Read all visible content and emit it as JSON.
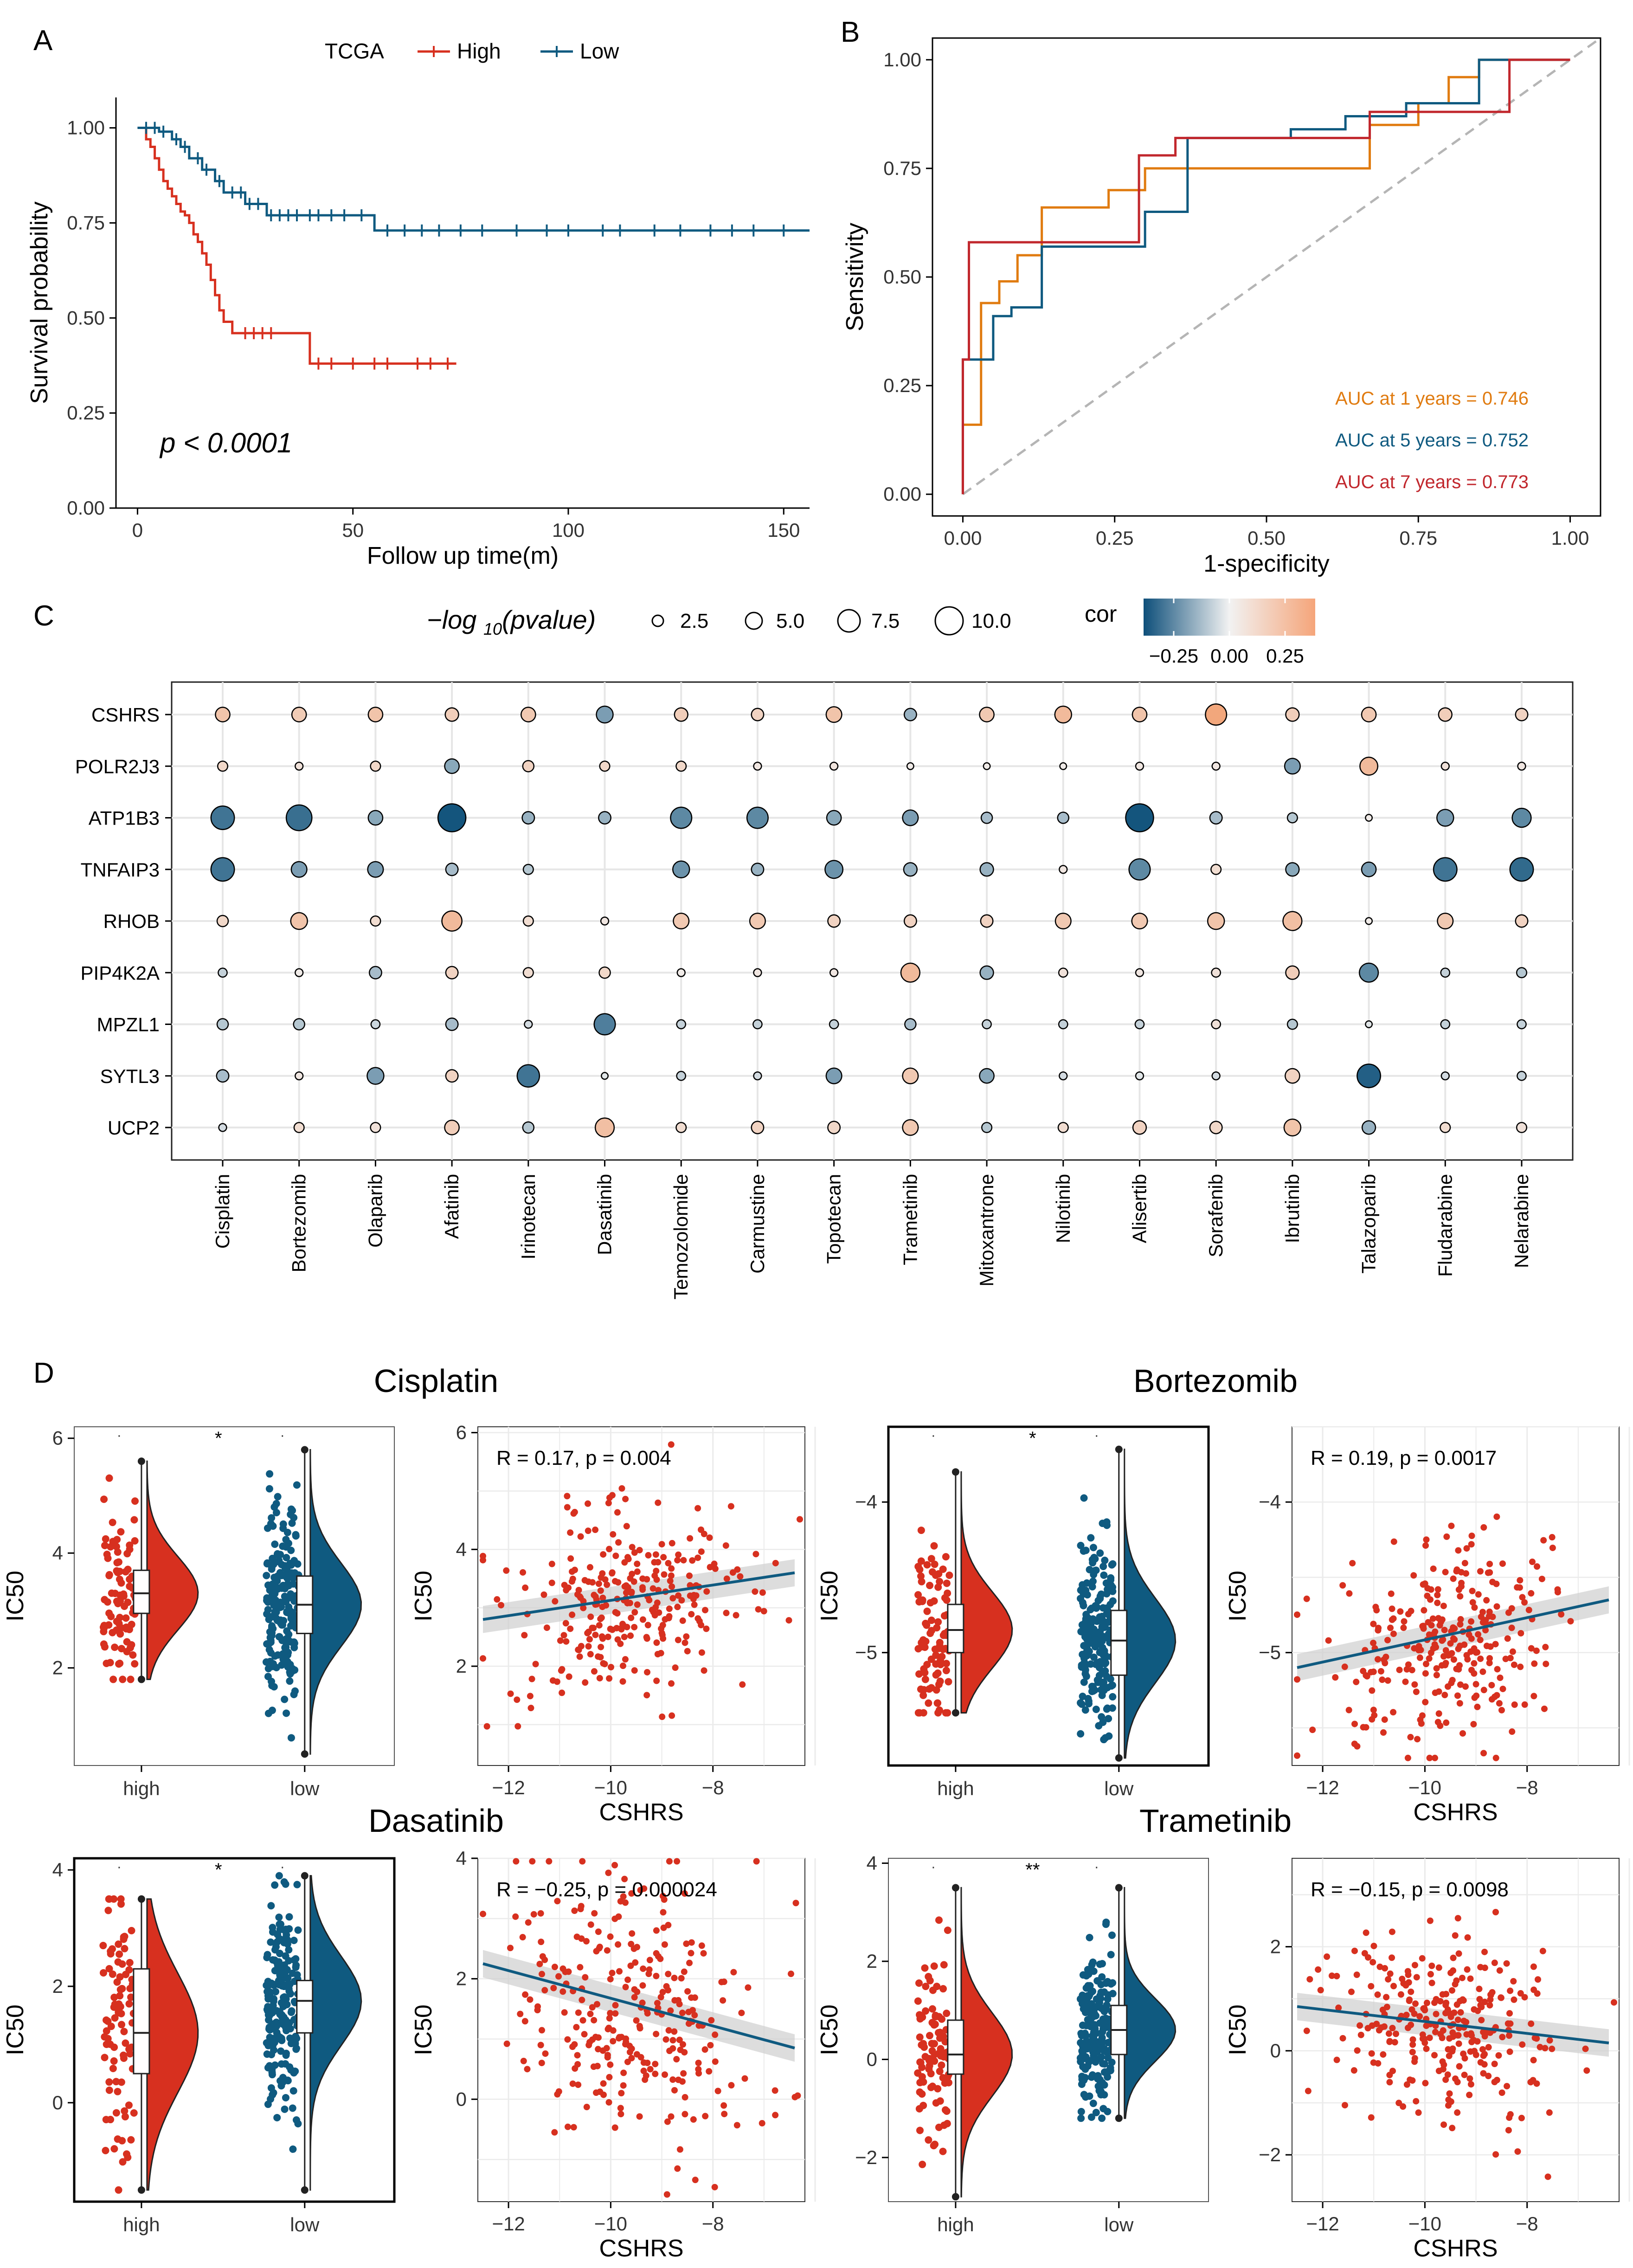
{
  "panels": {
    "A": "A",
    "B": "B",
    "C": "C",
    "D": "D"
  },
  "colors": {
    "high": "#d7301f",
    "low": "#0f5a80",
    "auc1": "#e07b10",
    "auc5": "#0f5a80",
    "auc7": "#c1272d",
    "pos": "#f2a77c",
    "neg": "#2c6a8f",
    "grid": "#e6e6e6"
  },
  "chart_data": [
    {
      "id": "A",
      "type": "line",
      "title": "TCGA",
      "xlabel": "Follow up time(m)",
      "ylabel": "Survival probability",
      "xlim": [
        -5,
        156
      ],
      "ylim": [
        0,
        1.08
      ],
      "xticks": [
        0,
        50,
        100,
        150
      ],
      "yticks": [
        0,
        0.25,
        0.5,
        0.75,
        1.0
      ],
      "yticklabels": [
        "0.00",
        "0.25",
        "0.50",
        "0.75",
        "1.00"
      ],
      "legend_title": "TCGA",
      "annotation": "p < 0.0001",
      "series": [
        {
          "name": "High",
          "x": [
            0,
            2,
            3,
            4,
            5,
            6,
            7,
            8,
            9,
            10,
            11,
            12,
            13,
            14,
            15,
            16,
            17,
            18,
            19,
            20,
            22,
            40,
            74
          ],
          "y": [
            1.0,
            0.97,
            0.95,
            0.92,
            0.89,
            0.86,
            0.84,
            0.82,
            0.8,
            0.78,
            0.77,
            0.75,
            0.72,
            0.7,
            0.67,
            0.64,
            0.6,
            0.56,
            0.52,
            0.49,
            0.46,
            0.38,
            0.38
          ],
          "censor_x": [
            25,
            27,
            29,
            31,
            42,
            45,
            50,
            55,
            58,
            65,
            68,
            72
          ]
        },
        {
          "name": "Low",
          "x": [
            0,
            5,
            8,
            10,
            12,
            15,
            18,
            20,
            25,
            30,
            55,
            156
          ],
          "y": [
            1.0,
            0.99,
            0.97,
            0.95,
            0.92,
            0.89,
            0.86,
            0.83,
            0.8,
            0.77,
            0.73,
            0.73
          ],
          "censor_x": [
            2,
            4,
            6,
            9,
            11,
            14,
            16,
            19,
            22,
            24,
            26,
            28,
            31,
            33,
            35,
            37,
            40,
            42,
            45,
            48,
            52,
            58,
            62,
            66,
            70,
            75,
            80,
            88,
            95,
            100,
            108,
            112,
            120,
            126,
            133,
            138,
            143,
            150
          ]
        }
      ]
    },
    {
      "id": "B",
      "type": "line",
      "title": "",
      "xlabel": "1-specificity",
      "ylabel": "Sensitivity",
      "xlim": [
        -0.05,
        1.05
      ],
      "ylim": [
        -0.05,
        1.05
      ],
      "xticks": [
        0,
        0.25,
        0.5,
        0.75,
        1.0
      ],
      "yticks": [
        0,
        0.25,
        0.5,
        0.75,
        1.0
      ],
      "xticklabels": [
        "0.00",
        "0.25",
        "0.50",
        "0.75",
        "1.00"
      ],
      "yticklabels": [
        "0.00",
        "0.25",
        "0.50",
        "0.75",
        "1.00"
      ],
      "series": [
        {
          "name": "AUC at 1 years = 0.746",
          "x": [
            0,
            0,
            0.03,
            0.03,
            0.06,
            0.06,
            0.09,
            0.09,
            0.13,
            0.13,
            0.24,
            0.24,
            0.3,
            0.3,
            0.67,
            0.67,
            0.75,
            0.75,
            0.8,
            0.8,
            0.85,
            0.85,
            1.0
          ],
          "y": [
            0,
            0.16,
            0.16,
            0.44,
            0.44,
            0.49,
            0.49,
            0.55,
            0.55,
            0.66,
            0.66,
            0.7,
            0.7,
            0.75,
            0.75,
            0.85,
            0.85,
            0.9,
            0.9,
            0.96,
            0.96,
            1.0,
            1.0
          ]
        },
        {
          "name": "AUC at 5 years = 0.752",
          "x": [
            0,
            0,
            0.05,
            0.05,
            0.08,
            0.08,
            0.13,
            0.13,
            0.3,
            0.3,
            0.34,
            0.34,
            0.37,
            0.37,
            0.54,
            0.54,
            0.63,
            0.63,
            0.73,
            0.73,
            0.85,
            0.85,
            0.92,
            0.92,
            1.0
          ],
          "y": [
            0,
            0.31,
            0.31,
            0.41,
            0.41,
            0.43,
            0.43,
            0.57,
            0.57,
            0.65,
            0.65,
            0.65,
            0.65,
            0.82,
            0.82,
            0.84,
            0.84,
            0.87,
            0.87,
            0.9,
            0.9,
            1.0,
            1.0,
            1.0,
            1.0
          ],
          "tail": "step"
        },
        {
          "name": "AUC at 7 years = 0.773",
          "x": [
            0,
            0,
            0.01,
            0.01,
            0.29,
            0.29,
            0.35,
            0.35,
            0.67,
            0.67,
            0.9,
            0.9,
            1.0
          ],
          "y": [
            0,
            0.31,
            0.31,
            0.58,
            0.58,
            0.78,
            0.78,
            0.82,
            0.82,
            0.88,
            0.88,
            1.0,
            1.0
          ]
        }
      ],
      "diagonal": true
    },
    {
      "id": "C",
      "type": "scatter",
      "title": "",
      "size_legend_title": "-log10(pvalue)",
      "size_legend_values": [
        "2.5",
        "5.0",
        "7.5",
        "10.0"
      ],
      "color_legend_title": "cor",
      "color_legend_ticks": [
        "-0.25",
        "0.00",
        "0.25"
      ],
      "rows": [
        "CSHRS",
        "POLR2J3",
        "ATP1B3",
        "TNFAIP3",
        "RHOB",
        "PIP4K2A",
        "MPZL1",
        "SYTL3",
        "UCP2"
      ],
      "columns": [
        "Cisplatin",
        "Bortezomib",
        "Olaparib",
        "Afatinib",
        "Irinotecan",
        "Dasatinib",
        "Temozolomide",
        "Carmustine",
        "Topotecan",
        "Trametinib",
        "Mitoxantrone",
        "Nilotinib",
        "Alisertib",
        "Sorafenib",
        "Ibrutinib",
        "Talazoparib",
        "Fludarabine",
        "Nelarabine"
      ],
      "cor": [
        [
          0.18,
          0.15,
          0.18,
          0.14,
          0.16,
          -0.16,
          0.14,
          0.12,
          0.18,
          -0.12,
          0.16,
          0.22,
          0.18,
          0.3,
          0.14,
          0.16,
          0.14,
          0.12
        ],
        [
          0.1,
          0.06,
          0.1,
          -0.14,
          0.12,
          0.1,
          0.1,
          0.04,
          0.05,
          0.02,
          0.02,
          0.02,
          0.04,
          0.04,
          -0.16,
          0.22,
          0.06,
          0.04
        ],
        [
          -0.24,
          -0.25,
          -0.14,
          -0.3,
          -0.12,
          -0.12,
          -0.2,
          -0.2,
          -0.14,
          -0.16,
          -0.1,
          -0.1,
          -0.3,
          -0.1,
          -0.08,
          0.02,
          -0.16,
          -0.2
        ],
        [
          -0.24,
          -0.16,
          -0.16,
          -0.1,
          -0.08,
          null,
          -0.18,
          -0.12,
          -0.18,
          -0.12,
          -0.12,
          0.04,
          -0.2,
          0.08,
          -0.14,
          -0.16,
          -0.24,
          -0.26
        ],
        [
          0.1,
          0.18,
          0.08,
          0.22,
          0.08,
          0.04,
          0.16,
          0.16,
          0.12,
          0.12,
          0.12,
          0.16,
          0.16,
          0.18,
          0.2,
          0.02,
          0.16,
          0.12
        ],
        [
          -0.06,
          0.02,
          -0.1,
          0.12,
          0.08,
          0.1,
          0.02,
          0.04,
          0.04,
          0.22,
          -0.12,
          0.06,
          0.04,
          0.06,
          0.14,
          -0.2,
          -0.06,
          -0.08
        ],
        [
          -0.08,
          -0.08,
          -0.05,
          -0.1,
          -0.04,
          -0.22,
          -0.06,
          -0.06,
          -0.06,
          -0.1,
          -0.06,
          -0.06,
          -0.06,
          0.06,
          -0.08,
          -0.02,
          -0.06,
          -0.06
        ],
        [
          -0.1,
          0.04,
          -0.16,
          0.12,
          -0.24,
          -0.02,
          -0.06,
          -0.04,
          -0.16,
          0.16,
          -0.14,
          -0.04,
          -0.02,
          -0.04,
          0.12,
          -0.28,
          -0.04,
          -0.06
        ],
        [
          -0.04,
          0.08,
          0.06,
          0.14,
          -0.08,
          0.2,
          0.08,
          0.12,
          0.1,
          0.16,
          -0.08,
          0.08,
          0.12,
          0.1,
          0.18,
          -0.12,
          0.08,
          0.06
        ]
      ],
      "neglog10p": [
        [
          4,
          4,
          4,
          3.5,
          4,
          5,
          3.5,
          3,
          4.5,
          3,
          4,
          5,
          4,
          7,
          3.5,
          4,
          3.5,
          3
        ],
        [
          2,
          1,
          2,
          4,
          2.5,
          2,
          2,
          1,
          1,
          0.5,
          0.5,
          0.5,
          1,
          1,
          4.5,
          5.5,
          1,
          1
        ],
        [
          8,
          9,
          4,
          10,
          3,
          3,
          7,
          7,
          4,
          4.5,
          2.5,
          2.5,
          10,
          3,
          2,
          0.5,
          5,
          6
        ],
        [
          8,
          4.5,
          4.5,
          3,
          2,
          0,
          5,
          3,
          5.5,
          3.5,
          3.5,
          1,
          7,
          2,
          3.5,
          4,
          8,
          8
        ],
        [
          2.5,
          5,
          2,
          6.5,
          2,
          1,
          4.5,
          4.5,
          3,
          3,
          3,
          4.5,
          4.5,
          5,
          6,
          0.5,
          4.5,
          3
        ],
        [
          1.5,
          1,
          3,
          3,
          2,
          2.5,
          1,
          1,
          1,
          6,
          3.5,
          1.5,
          1,
          1.5,
          3.5,
          6,
          1.5,
          2
        ],
        [
          2.5,
          2.5,
          1.5,
          3,
          1,
          7,
          1.5,
          1.5,
          1.5,
          2.5,
          1.5,
          1.5,
          1.5,
          1.5,
          2,
          0.5,
          1.5,
          1.5
        ],
        [
          3,
          1,
          5,
          3,
          7.5,
          0.5,
          1.5,
          1,
          4.5,
          4.5,
          4,
          1,
          1,
          1,
          4,
          8,
          1,
          1.5
        ],
        [
          1,
          2,
          2,
          4,
          2.5,
          6,
          2,
          3,
          3,
          4.5,
          2,
          2,
          3.5,
          3,
          5,
          3.5,
          2,
          2
        ]
      ]
    },
    {
      "id": "D1",
      "type": "scatter",
      "title": "Cisplatin",
      "ylabel": "IC50",
      "groups": [
        "high",
        "low"
      ],
      "signif": "*",
      "ylim": [
        0.3,
        6.2
      ],
      "yticks": [
        2,
        4,
        6
      ],
      "high": {
        "q1": 2.95,
        "median": 3.3,
        "q3": 3.7,
        "min": 1.8,
        "max": 5.6,
        "mean": 3.3,
        "sd": 0.75
      },
      "low": {
        "q1": 2.6,
        "median": 3.1,
        "q3": 3.6,
        "min": 0.5,
        "max": 5.8,
        "mean": 3.1,
        "sd": 0.85
      },
      "scatter": {
        "xlabel": "CSHRS",
        "ylabel": "IC50",
        "stat": "R = 0.17, p = 0.004",
        "xlim": [
          -12.6,
          -6.2
        ],
        "ylim": [
          0.3,
          6.1
        ],
        "xticks": [
          -12,
          -10,
          -8
        ],
        "yticks": [
          2,
          4,
          6
        ],
        "line": [
          [
            -12.5,
            2.8
          ],
          [
            -6.4,
            3.6
          ]
        ],
        "cx": -9.6,
        "cy": 3.1,
        "sy": 0.85,
        "slope": 0.13
      }
    },
    {
      "id": "D2",
      "type": "scatter",
      "title": "Bortezomib",
      "ylabel": "IC50",
      "groups": [
        "high",
        "low"
      ],
      "signif": "*",
      "ylim": [
        -5.75,
        -3.5
      ],
      "yticks": [
        -5,
        -4
      ],
      "high": {
        "q1": -5.0,
        "median": -4.85,
        "q3": -4.68,
        "min": -5.4,
        "max": -3.8,
        "mean": -4.85,
        "sd": 0.3
      },
      "low": {
        "q1": -5.15,
        "median": -4.92,
        "q3": -4.72,
        "min": -5.7,
        "max": -3.65,
        "mean": -4.92,
        "sd": 0.33
      },
      "scatter": {
        "xlabel": "CSHRS",
        "ylabel": "IC50",
        "stat": "R = 0.19, p = 0.0017",
        "xlim": [
          -12.6,
          -6.2
        ],
        "ylim": [
          -5.75,
          -3.5
        ],
        "xticks": [
          -12,
          -10,
          -8
        ],
        "yticks": [
          -5,
          -4
        ],
        "line": [
          [
            -12.5,
            -5.1
          ],
          [
            -6.4,
            -4.65
          ]
        ],
        "cx": -9.6,
        "cy": -4.9,
        "sy": 0.33,
        "slope": 0.07
      }
    },
    {
      "id": "D3",
      "type": "scatter",
      "title": "Dasatinib",
      "ylabel": "IC50",
      "groups": [
        "high",
        "low"
      ],
      "signif": "*",
      "ylim": [
        -1.7,
        4.2
      ],
      "yticks": [
        0,
        2,
        4
      ],
      "high": {
        "q1": 0.5,
        "median": 1.2,
        "q3": 2.3,
        "min": -1.5,
        "max": 3.5,
        "mean": 1.25,
        "sd": 1.2
      },
      "low": {
        "q1": 1.2,
        "median": 1.75,
        "q3": 2.1,
        "min": -1.5,
        "max": 3.9,
        "mean": 1.7,
        "sd": 0.9
      },
      "scatter": {
        "xlabel": "CSHRS",
        "ylabel": "IC50",
        "stat": "R = −0.25, p = 0.000024",
        "xlim": [
          -12.6,
          -6.2
        ],
        "ylim": [
          -1.7,
          4.0
        ],
        "xticks": [
          -12,
          -10,
          -8
        ],
        "yticks": [
          0,
          2,
          4
        ],
        "line": [
          [
            -12.5,
            2.25
          ],
          [
            -6.4,
            0.85
          ]
        ],
        "cx": -9.6,
        "cy": 1.6,
        "sy": 1.0,
        "slope": -0.23
      }
    },
    {
      "id": "D4",
      "type": "scatter",
      "title": "Trametinib",
      "ylabel": "IC50",
      "groups": [
        "high",
        "low"
      ],
      "signif": "**",
      "ylim": [
        -2.9,
        4.1
      ],
      "yticks": [
        -2,
        0,
        2,
        4
      ],
      "high": {
        "q1": -0.3,
        "median": 0.1,
        "q3": 0.8,
        "min": -2.8,
        "max": 3.5,
        "mean": 0.2,
        "sd": 1.0
      },
      "low": {
        "q1": 0.1,
        "median": 0.6,
        "q3": 1.1,
        "min": -1.2,
        "max": 3.5,
        "mean": 0.6,
        "sd": 0.75
      },
      "scatter": {
        "xlabel": "CSHRS",
        "ylabel": "IC50",
        "stat": "R = −0.15, p = 0.0098",
        "xlim": [
          -12.6,
          -6.2
        ],
        "ylim": [
          -2.9,
          3.7
        ],
        "xticks": [
          -12,
          -10,
          -8
        ],
        "yticks": [
          -2,
          0,
          2
        ],
        "line": [
          [
            -12.5,
            0.85
          ],
          [
            -6.4,
            0.15
          ]
        ],
        "cx": -9.6,
        "cy": 0.45,
        "sy": 0.85,
        "slope": -0.11
      }
    }
  ]
}
